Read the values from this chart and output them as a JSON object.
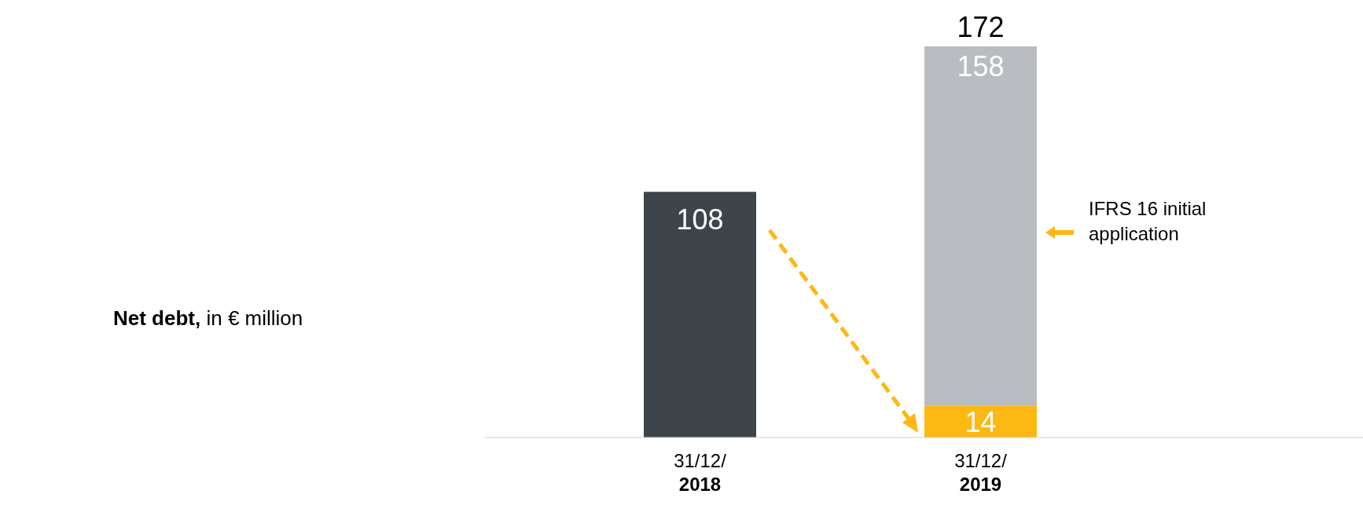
{
  "chart_data": {
    "type": "bar",
    "title": "Net debt,",
    "subtitle": "in € million",
    "categories": [
      "31/12/\n2018",
      "31/12/\n2019"
    ],
    "stacked": true,
    "data_labels": true,
    "totals": [
      null,
      "172"
    ],
    "series": [
      {
        "color": "#3d454b",
        "values": [
          108,
          null
        ]
      },
      {
        "color": "#fdb813",
        "values": [
          null,
          14
        ]
      },
      {
        "color": "#b9bcc0",
        "values": [
          null,
          158
        ]
      }
    ],
    "annotations": [
      "IFRS 16 initial application"
    ]
  }
}
